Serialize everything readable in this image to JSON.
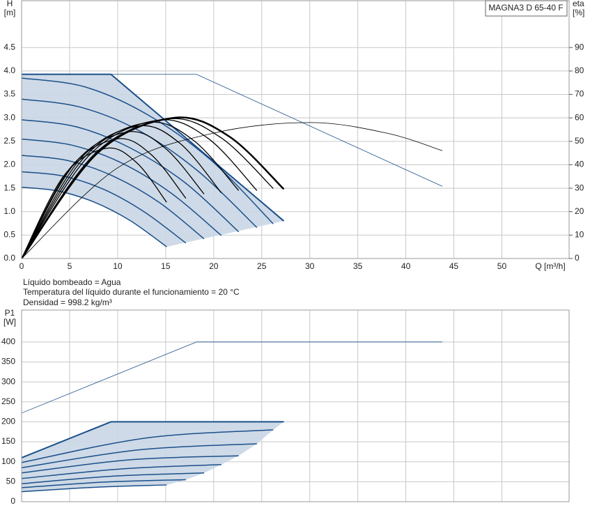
{
  "model": "MAGNA3 D 65-40 F",
  "notes": [
    "Líquido bombeado = Agua",
    "Temperatura del líquido durante el funcionamiento = 20 °C",
    "Densidad = 998.2 kg/m³"
  ],
  "chart_data": [
    {
      "type": "line",
      "y_label": [
        "H",
        "[m]"
      ],
      "y2_label": [
        "eta",
        "[%]"
      ],
      "x_label": "Q [m³/h]",
      "xlim": [
        0,
        57
      ],
      "xticks": [
        0,
        5,
        10,
        15,
        20,
        25,
        30,
        35,
        40,
        45,
        50
      ],
      "ylim": [
        0,
        5.5
      ],
      "yticks": [
        {
          "value": 0,
          "label": "0.0"
        },
        0.5,
        {
          "value": 1,
          "label": "1.0"
        },
        1.5,
        {
          "value": 2,
          "label": "2.0"
        },
        2.5,
        {
          "value": 3,
          "label": "3.0"
        },
        3.5,
        {
          "value": 4,
          "label": "4.0"
        },
        4.5
      ],
      "y2lim": [
        0,
        110
      ],
      "y2ticks": [
        0,
        10,
        20,
        30,
        40,
        50,
        60,
        70,
        80,
        90
      ],
      "grid": true,
      "grid_color": "#c8c8c8",
      "area": {
        "color": "#c9d6e4",
        "x": [
          0,
          9.3,
          27.3,
          15.1,
          11.3,
          7.6,
          3.8,
          0
        ],
        "values": [
          3.93,
          3.93,
          0.8,
          0.25,
          0.81,
          1.2,
          1.44,
          1.52
        ]
      },
      "series": [
        {
          "color": "#1a4f8a",
          "line_width": 0.8,
          "smooth": false,
          "x": [
            0,
            18.2,
            43.8
          ],
          "values": [
            3.93,
            3.93,
            1.54
          ]
        },
        {
          "color": "#1a4f8a",
          "line_width": 2,
          "smooth": false,
          "x": [
            0,
            9.3,
            27.3
          ],
          "values": [
            3.93,
            3.93,
            0.8
          ]
        },
        {
          "color": "#1a4f8a",
          "line_width": 1.5,
          "smooth": true,
          "x": [
            0,
            6.6,
            13.1,
            19.7,
            26.2
          ],
          "values": [
            3.85,
            3.66,
            3.07,
            2.1,
            0.74
          ]
        },
        {
          "color": "#1a4f8a",
          "line_width": 1.5,
          "smooth": true,
          "x": [
            0,
            6.1,
            12.3,
            18.4,
            24.5
          ],
          "values": [
            3.4,
            3.23,
            2.72,
            1.86,
            0.66
          ]
        },
        {
          "color": "#1a4f8a",
          "line_width": 1.5,
          "smooth": true,
          "x": [
            0,
            5.7,
            11.3,
            17,
            22.6
          ],
          "values": [
            2.96,
            2.81,
            2.36,
            1.62,
            0.57
          ]
        },
        {
          "color": "#1a4f8a",
          "line_width": 1.5,
          "smooth": true,
          "x": [
            0,
            5.2,
            10.4,
            15.6,
            20.8
          ],
          "values": [
            2.55,
            2.42,
            2.04,
            1.39,
            0.49
          ]
        },
        {
          "color": "#1a4f8a",
          "line_width": 1.5,
          "smooth": true,
          "x": [
            0,
            4.8,
            9.5,
            14.3,
            19
          ],
          "values": [
            2.2,
            2.09,
            1.76,
            1.2,
            0.42
          ]
        },
        {
          "color": "#1a4f8a",
          "line_width": 1.5,
          "smooth": true,
          "x": [
            0,
            4.3,
            8.6,
            12.8,
            17.1
          ],
          "values": [
            1.85,
            1.76,
            1.47,
            0.99,
            0.33
          ]
        },
        {
          "color": "#1a4f8a",
          "line_width": 1.5,
          "smooth": true,
          "x": [
            0,
            3.8,
            7.6,
            11.3,
            15.1
          ],
          "values": [
            1.52,
            1.44,
            1.2,
            0.81,
            0.25
          ]
        },
        {
          "color": "#000000",
          "axis": "y2",
          "line_width": 1.3,
          "smooth": true,
          "x": [
            0,
            4.4,
            8.8,
            12,
            15.1
          ],
          "values": [
            0,
            35.3,
            47,
            40.8,
            24
          ]
        },
        {
          "color": "#000000",
          "axis": "y2",
          "line_width": 1.3,
          "smooth": true,
          "x": [
            0,
            5,
            9.9,
            13.5,
            17.1
          ],
          "values": [
            0,
            38.3,
            51,
            44.3,
            25.7
          ]
        },
        {
          "color": "#000000",
          "axis": "y2",
          "line_width": 1.3,
          "smooth": true,
          "x": [
            0,
            5.5,
            11,
            15,
            19
          ],
          "values": [
            0,
            40.5,
            54,
            46.9,
            27.5
          ]
        },
        {
          "color": "#000000",
          "axis": "y2",
          "line_width": 1.3,
          "smooth": true,
          "x": [
            0,
            6.1,
            12.1,
            16.5,
            20.8
          ],
          "values": [
            0,
            42.4,
            56.5,
            49.1,
            28
          ]
        },
        {
          "color": "#000000",
          "axis": "y2",
          "line_width": 1.3,
          "smooth": true,
          "x": [
            0,
            6.6,
            13.1,
            17.9,
            22.6
          ],
          "values": [
            0,
            43.5,
            58,
            50.4,
            29
          ]
        },
        {
          "color": "#000000",
          "axis": "y2",
          "line_width": 1.3,
          "smooth": true,
          "x": [
            0,
            7.1,
            14.2,
            19.4,
            24.5
          ],
          "values": [
            0,
            44.3,
            59,
            51.3,
            29
          ]
        },
        {
          "color": "#000000",
          "axis": "y2",
          "line_width": 1.3,
          "smooth": true,
          "x": [
            0,
            7.6,
            15.2,
            20.7,
            26.2
          ],
          "values": [
            0,
            44.6,
            59.5,
            51.7,
            29.9
          ]
        },
        {
          "color": "#000000",
          "axis": "y2",
          "line_width": 2.5,
          "smooth": true,
          "x": [
            0,
            7.9,
            15.8,
            21.6,
            27.3
          ],
          "values": [
            0,
            45,
            60,
            52.1,
            29.6
          ]
        },
        {
          "color": "#000000",
          "axis": "y2",
          "line_width": 0.8,
          "smooth": true,
          "x": [
            0,
            10,
            20,
            30,
            38,
            43.8
          ],
          "values": [
            0,
            38.7,
            53.5,
            58,
            53.5,
            46
          ]
        }
      ]
    },
    {
      "type": "line",
      "y_label": [
        "P1",
        "[W]"
      ],
      "xlim": [
        0,
        57
      ],
      "xticks": [
        0,
        5,
        10,
        15,
        20,
        25,
        30,
        35,
        40,
        45,
        50
      ],
      "xtick_labels": false,
      "ylim": [
        0,
        480
      ],
      "yticks": [
        0,
        50,
        100,
        150,
        200,
        250,
        300,
        350,
        400
      ],
      "grid": true,
      "grid_color": "#c8c8c8",
      "area": {
        "color": "#c9d6e4",
        "x": [
          0,
          9.3,
          27.3,
          26.2,
          24.5,
          22.6,
          20.8,
          19,
          17.1,
          15.1,
          7.6,
          0
        ],
        "values": [
          110,
          200,
          200,
          180,
          145,
          115,
          93,
          72,
          55,
          42,
          36,
          25
        ]
      },
      "series": [
        {
          "color": "#1a4f8a",
          "line_width": 0.8,
          "smooth": false,
          "x": [
            0,
            18.2,
            43.8
          ],
          "values": [
            222,
            400,
            400
          ]
        },
        {
          "color": "#1a4f8a",
          "line_width": 2,
          "smooth": false,
          "x": [
            0,
            9.3,
            27.3
          ],
          "values": [
            110,
            200,
            200
          ]
        },
        {
          "color": "#1a4f8a",
          "line_width": 1.5,
          "smooth": true,
          "x": [
            0,
            13.1,
            26.2
          ],
          "values": [
            98,
            160,
            180
          ]
        },
        {
          "color": "#1a4f8a",
          "line_width": 1.5,
          "smooth": true,
          "x": [
            0,
            12.3,
            24.5
          ],
          "values": [
            85,
            130,
            145
          ]
        },
        {
          "color": "#1a4f8a",
          "line_width": 1.5,
          "smooth": true,
          "x": [
            0,
            11.3,
            22.6
          ],
          "values": [
            72,
            105,
            115
          ]
        },
        {
          "color": "#1a4f8a",
          "line_width": 1.5,
          "smooth": true,
          "x": [
            0,
            10.4,
            20.8
          ],
          "values": [
            58,
            82,
            93
          ]
        },
        {
          "color": "#1a4f8a",
          "line_width": 1.5,
          "smooth": true,
          "x": [
            0,
            9.5,
            19
          ],
          "values": [
            45,
            64,
            72
          ]
        },
        {
          "color": "#1a4f8a",
          "line_width": 1.5,
          "smooth": true,
          "x": [
            0,
            8.6,
            17.1
          ],
          "values": [
            35,
            49,
            55
          ]
        },
        {
          "color": "#1a4f8a",
          "line_width": 1.5,
          "smooth": true,
          "x": [
            0,
            7.6,
            15.1
          ],
          "values": [
            25,
            36,
            42
          ]
        }
      ]
    }
  ]
}
